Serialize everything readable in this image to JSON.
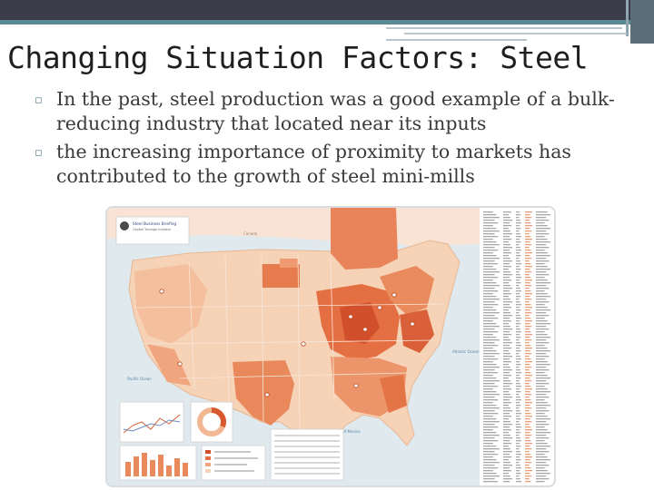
{
  "slide": {
    "title": "Changing Situation Factors: Steel",
    "bullets": [
      "In the past, steel production was a good example of a bulk-reducing industry that located near its inputs",
      "the increasing importance of proximity to markets has contributed to the growth of steel mini-mills"
    ],
    "bullet_marker": "▫"
  },
  "map_image": {
    "header_title": "Steel Business Briefing",
    "header_subtitle": "Capital Tonnage Investor",
    "labels": {
      "canada": "Canada",
      "atlantic": "Atlantic Ocean",
      "pacific": "Pacific Ocean",
      "gulf": "Gulf of Mexico"
    },
    "colors": {
      "ocean": "#dfe9ee",
      "land_light": "#f6d2b7",
      "land_mid": "#f0a57e",
      "land_dark": "#e46f42",
      "land_darkest": "#d14f2a"
    }
  },
  "theme": {
    "topbar": "#3b3d4b",
    "accent": "#5a8a94"
  }
}
